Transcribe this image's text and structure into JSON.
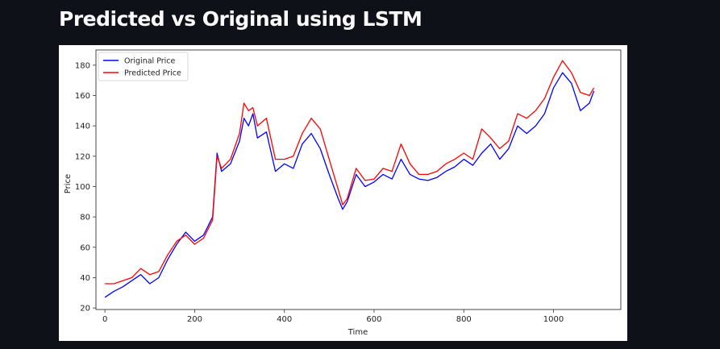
{
  "header": {
    "title": "Predicted vs Original using LSTM"
  },
  "chart_data": {
    "type": "line",
    "title": "",
    "xlabel": "Time",
    "ylabel": "Price",
    "xlim": [
      -20,
      1150
    ],
    "ylim": [
      19,
      190
    ],
    "x_ticks": [
      0,
      200,
      400,
      600,
      800,
      1000
    ],
    "y_ticks": [
      20,
      40,
      60,
      80,
      100,
      120,
      140,
      160,
      180
    ],
    "grid": false,
    "legend_position": "top-left",
    "x": [
      0,
      20,
      40,
      60,
      80,
      100,
      120,
      140,
      160,
      180,
      200,
      220,
      240,
      250,
      260,
      280,
      300,
      310,
      320,
      330,
      340,
      360,
      380,
      400,
      420,
      440,
      460,
      480,
      500,
      520,
      530,
      540,
      560,
      580,
      600,
      620,
      640,
      660,
      680,
      700,
      720,
      740,
      760,
      780,
      800,
      820,
      840,
      860,
      880,
      900,
      920,
      940,
      960,
      980,
      1000,
      1020,
      1040,
      1060,
      1080,
      1090
    ],
    "series": [
      {
        "name": "Original Price",
        "color": "#0000ff",
        "values": [
          27,
          31,
          34,
          38,
          42,
          36,
          40,
          52,
          62,
          70,
          64,
          68,
          80,
          122,
          110,
          115,
          130,
          145,
          140,
          148,
          132,
          136,
          110,
          115,
          112,
          128,
          135,
          125,
          108,
          92,
          85,
          90,
          108,
          100,
          103,
          108,
          105,
          118,
          108,
          105,
          104,
          106,
          110,
          113,
          118,
          114,
          122,
          128,
          118,
          125,
          140,
          135,
          140,
          148,
          165,
          175,
          168,
          150,
          155,
          163
        ]
      },
      {
        "name": "Predicted Price",
        "color": "#ff0000",
        "values": [
          36,
          36,
          38,
          40,
          46,
          42,
          44,
          55,
          64,
          68,
          62,
          66,
          78,
          120,
          112,
          118,
          135,
          155,
          150,
          152,
          140,
          145,
          118,
          118,
          120,
          135,
          145,
          138,
          118,
          98,
          88,
          92,
          112,
          104,
          105,
          112,
          110,
          128,
          115,
          108,
          108,
          110,
          115,
          118,
          122,
          118,
          138,
          132,
          125,
          130,
          148,
          145,
          150,
          158,
          172,
          183,
          175,
          162,
          160,
          165
        ]
      }
    ]
  }
}
